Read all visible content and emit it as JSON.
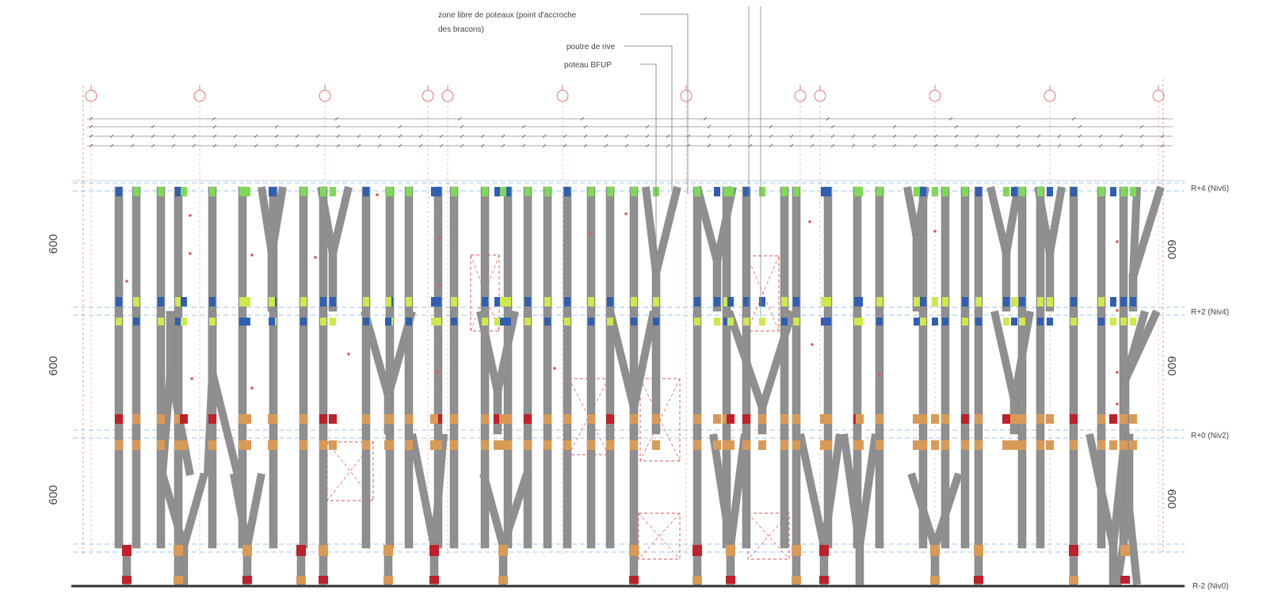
{
  "annotations": {
    "zone_line1": "zone libre de poteaux (point d'accroche",
    "zone_line2": "des bracons)",
    "poutre": "poutre de rive",
    "poteau": "poteau BFUP"
  },
  "levels": {
    "r4": "R+4 (Niv6)",
    "r2": "R+2 (Niv4)",
    "r0": "R+0 (Niv2)",
    "rm2": "R-2 (Niv0)"
  },
  "storey_dims": {
    "left": [
      "600",
      "600",
      "600"
    ],
    "right": [
      "600",
      "600",
      "600"
    ]
  },
  "colors": {
    "column": "#8f8f8f",
    "column_stroke": "#7a7a7a",
    "marker_green": "#7ed957",
    "marker_blue": "#2f5fb3",
    "marker_yellow": "#cfe84a",
    "marker_orange": "#d99a55",
    "marker_red": "#c0202a",
    "grid_red": "#e05555",
    "level_blue": "#7fb3e6",
    "dim_line": "#555555",
    "ground": "#333333"
  }
}
